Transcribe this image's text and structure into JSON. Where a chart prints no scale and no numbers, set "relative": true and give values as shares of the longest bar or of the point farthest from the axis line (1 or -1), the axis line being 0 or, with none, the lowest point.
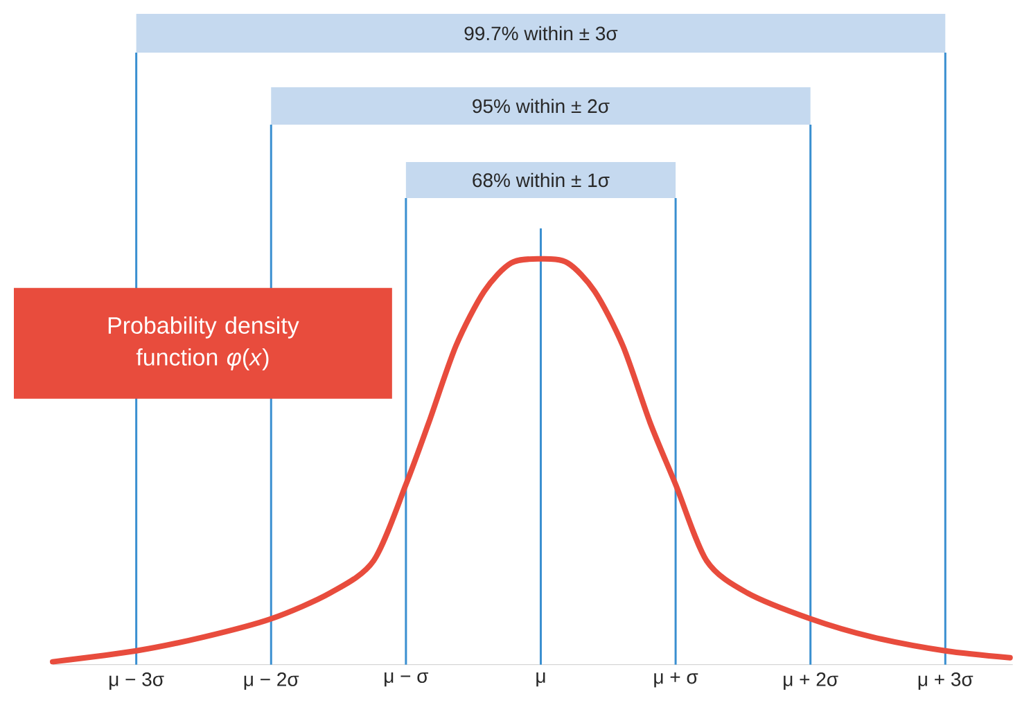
{
  "chart_data": {
    "type": "line",
    "relative": true,
    "color": "#e84c3d",
    "line_style": "solid",
    "marker": "none",
    "grid": false,
    "x": [
      -3.62,
      -3,
      -2.5,
      -2,
      -1.56,
      -1.24,
      -1,
      -0.83,
      -0.63,
      -0.42,
      -0.22,
      0,
      0.2,
      0.4,
      0.61,
      0.81,
      1,
      1.23,
      1.53,
      2,
      2.46,
      3,
      3.48
    ],
    "values": [
      0.007,
      0.034,
      0.068,
      0.113,
      0.177,
      0.256,
      0.444,
      0.597,
      0.785,
      0.92,
      0.99,
      1,
      0.99,
      0.92,
      0.785,
      0.597,
      0.444,
      0.256,
      0.177,
      0.113,
      0.068,
      0.034,
      0.017
    ],
    "xlim": [
      -3.62,
      3.5
    ],
    "xticks": [
      {
        "value": -3,
        "label": "μ − 3σ"
      },
      {
        "value": -2,
        "label": "μ − 2σ"
      },
      {
        "value": -1,
        "label": "μ − σ"
      },
      {
        "value": 0,
        "label": "μ"
      },
      {
        "value": 1,
        "label": "μ + σ"
      },
      {
        "value": 2,
        "label": "μ + 2σ"
      },
      {
        "value": 3,
        "label": "μ + 3σ"
      }
    ],
    "ref_lines": [
      {
        "axis": "x",
        "value": -3,
        "color": "#3a8fd0"
      },
      {
        "axis": "x",
        "value": -2,
        "color": "#3a8fd0"
      },
      {
        "axis": "x",
        "value": -1,
        "color": "#3a8fd0"
      },
      {
        "axis": "x",
        "value": 0,
        "color": "#3a8fd0"
      },
      {
        "axis": "x",
        "value": 1,
        "color": "#3a8fd0"
      },
      {
        "axis": "x",
        "value": 2,
        "color": "#3a8fd0"
      },
      {
        "axis": "x",
        "value": 3,
        "color": "#3a8fd0"
      }
    ],
    "annotations": [
      "99.7% within ± 3σ",
      "95% within ± 2σ",
      "68% within ± 1σ",
      "Probability density function *φ*(*x*)"
    ]
  }
}
